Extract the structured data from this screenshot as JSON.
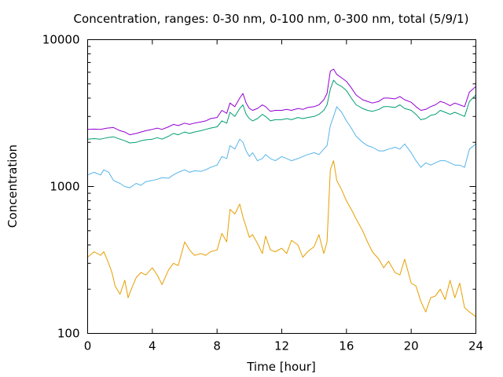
{
  "chart_data": {
    "type": "line",
    "title": "Concentration, ranges: 0-30 nm, 0-100 nm, 0-300 nm, total (5/9/1)",
    "xlabel": "Time [hour]",
    "ylabel": "Concentration",
    "xlim": [
      0,
      24
    ],
    "ylim": [
      100,
      10000
    ],
    "yscale": "log",
    "grid": false,
    "legend": "none",
    "x_ticks": [
      "0",
      "4",
      "8",
      "12",
      "16",
      "20",
      "24"
    ],
    "y_ticks": [
      "100",
      "1000",
      "10000"
    ],
    "x_tick_values": [
      0,
      4,
      8,
      12,
      16,
      20,
      24
    ],
    "y_tick_values": [
      100,
      1000,
      10000
    ],
    "series": [
      {
        "color": "#e69f00",
        "x": [
          0,
          0.4,
          0.8,
          1,
          1.3,
          1.5,
          1.7,
          2,
          2.3,
          2.5,
          2.7,
          3,
          3.3,
          3.6,
          4,
          4.3,
          4.6,
          5,
          5.3,
          5.6,
          6,
          6.3,
          6.6,
          7,
          7.3,
          7.6,
          8,
          8.3,
          8.6,
          8.8,
          9.1,
          9.4,
          9.6,
          9.8,
          10,
          10.2,
          10.5,
          10.8,
          11,
          11.3,
          11.6,
          12,
          12.3,
          12.6,
          13,
          13.3,
          13.6,
          14,
          14.3,
          14.6,
          14.8,
          15,
          15.2,
          15.4,
          15.7,
          16,
          16.3,
          16.6,
          17,
          17.3,
          17.6,
          18,
          18.3,
          18.6,
          19,
          19.3,
          19.6,
          20,
          20.3,
          20.6,
          20.9,
          21.2,
          21.5,
          21.8,
          22.1,
          22.4,
          22.7,
          23,
          23.3,
          23.6,
          24
        ],
        "values": [
          330,
          360,
          340,
          360,
          300,
          260,
          210,
          185,
          230,
          175,
          200,
          240,
          260,
          250,
          280,
          250,
          215,
          270,
          300,
          290,
          420,
          370,
          340,
          350,
          340,
          360,
          370,
          480,
          420,
          700,
          650,
          760,
          620,
          530,
          450,
          470,
          410,
          350,
          460,
          370,
          360,
          380,
          350,
          430,
          400,
          330,
          360,
          390,
          470,
          350,
          420,
          1300,
          1500,
          1100,
          950,
          800,
          700,
          600,
          500,
          420,
          360,
          320,
          280,
          310,
          260,
          250,
          320,
          220,
          210,
          165,
          140,
          175,
          180,
          200,
          170,
          230,
          175,
          220,
          150,
          140,
          130
        ]
      },
      {
        "color": "#56b4e9",
        "x": [
          0,
          0.4,
          0.8,
          1,
          1.3,
          1.6,
          2,
          2.3,
          2.6,
          3,
          3.3,
          3.6,
          4,
          4.3,
          4.6,
          5,
          5.3,
          5.6,
          6,
          6.3,
          6.6,
          7,
          7.3,
          7.6,
          8,
          8.3,
          8.6,
          8.8,
          9.1,
          9.4,
          9.6,
          9.8,
          10,
          10.2,
          10.5,
          10.8,
          11,
          11.3,
          11.6,
          12,
          12.3,
          12.6,
          13,
          13.3,
          13.6,
          14,
          14.3,
          14.6,
          14.8,
          15,
          15.2,
          15.4,
          15.7,
          16,
          16.3,
          16.6,
          17,
          17.3,
          17.6,
          18,
          18.3,
          18.6,
          19,
          19.3,
          19.6,
          20,
          20.3,
          20.6,
          20.9,
          21.2,
          21.5,
          21.8,
          22.1,
          22.4,
          22.7,
          23,
          23.3,
          23.6,
          24
        ],
        "values": [
          1200,
          1250,
          1200,
          1300,
          1250,
          1100,
          1050,
          1000,
          980,
          1050,
          1020,
          1080,
          1100,
          1120,
          1150,
          1140,
          1200,
          1250,
          1300,
          1250,
          1280,
          1270,
          1300,
          1350,
          1400,
          1600,
          1550,
          1900,
          1800,
          2100,
          2000,
          1750,
          1600,
          1700,
          1500,
          1550,
          1650,
          1550,
          1500,
          1600,
          1550,
          1500,
          1550,
          1600,
          1650,
          1700,
          1650,
          1800,
          1900,
          2600,
          3000,
          3500,
          3200,
          2800,
          2500,
          2200,
          2000,
          1900,
          1850,
          1750,
          1750,
          1800,
          1850,
          1800,
          1950,
          1700,
          1500,
          1350,
          1450,
          1400,
          1450,
          1500,
          1500,
          1450,
          1400,
          1400,
          1350,
          1800,
          1950
        ]
      },
      {
        "color": "#009e73",
        "x": [
          0,
          0.4,
          0.8,
          1.2,
          1.6,
          2,
          2.3,
          2.6,
          3,
          3.3,
          3.6,
          4,
          4.3,
          4.6,
          5,
          5.3,
          5.6,
          6,
          6.3,
          6.6,
          7,
          7.3,
          7.6,
          8,
          8.3,
          8.6,
          8.8,
          9.1,
          9.4,
          9.6,
          9.8,
          10,
          10.2,
          10.5,
          10.8,
          11,
          11.3,
          11.6,
          12,
          12.3,
          12.6,
          13,
          13.3,
          13.6,
          14,
          14.3,
          14.6,
          14.8,
          15,
          15.2,
          15.4,
          15.7,
          16,
          16.3,
          16.6,
          17,
          17.3,
          17.6,
          18,
          18.3,
          18.6,
          19,
          19.3,
          19.6,
          20,
          20.3,
          20.6,
          20.9,
          21.2,
          21.5,
          21.8,
          22.1,
          22.4,
          22.7,
          23,
          23.3,
          23.6,
          24
        ],
        "values": [
          2100,
          2120,
          2100,
          2150,
          2180,
          2100,
          2050,
          1980,
          2000,
          2050,
          2080,
          2100,
          2150,
          2100,
          2200,
          2300,
          2250,
          2350,
          2300,
          2350,
          2400,
          2450,
          2500,
          2550,
          2800,
          2700,
          3200,
          3000,
          3400,
          3600,
          3100,
          2900,
          2800,
          2900,
          3100,
          3000,
          2800,
          2850,
          2850,
          2900,
          2850,
          2950,
          2900,
          2950,
          3000,
          3100,
          3300,
          3600,
          4600,
          5300,
          5000,
          4800,
          4500,
          4000,
          3600,
          3400,
          3300,
          3250,
          3350,
          3500,
          3500,
          3450,
          3600,
          3400,
          3300,
          3100,
          2850,
          2900,
          3050,
          3100,
          3300,
          3200,
          3100,
          3200,
          3100,
          3000,
          3800,
          4200
        ]
      },
      {
        "color": "#9400d3",
        "x": [
          0,
          0.4,
          0.8,
          1.2,
          1.6,
          2,
          2.3,
          2.6,
          3,
          3.3,
          3.6,
          4,
          4.3,
          4.6,
          5,
          5.3,
          5.6,
          6,
          6.3,
          6.6,
          7,
          7.3,
          7.6,
          8,
          8.3,
          8.6,
          8.8,
          9.1,
          9.4,
          9.6,
          9.8,
          10,
          10.2,
          10.5,
          10.8,
          11,
          11.3,
          11.6,
          12,
          12.3,
          12.6,
          13,
          13.3,
          13.6,
          14,
          14.3,
          14.6,
          14.8,
          15,
          15.2,
          15.4,
          15.7,
          16,
          16.3,
          16.6,
          17,
          17.3,
          17.6,
          18,
          18.3,
          18.6,
          19,
          19.3,
          19.6,
          20,
          20.3,
          20.6,
          20.9,
          21.2,
          21.5,
          21.8,
          22.1,
          22.4,
          22.7,
          23,
          23.3,
          23.6,
          24
        ],
        "values": [
          2450,
          2460,
          2450,
          2500,
          2520,
          2400,
          2350,
          2250,
          2300,
          2350,
          2400,
          2450,
          2500,
          2450,
          2550,
          2650,
          2600,
          2700,
          2650,
          2700,
          2750,
          2800,
          2900,
          2950,
          3300,
          3150,
          3700,
          3500,
          4000,
          4300,
          3700,
          3400,
          3300,
          3400,
          3600,
          3500,
          3250,
          3300,
          3300,
          3350,
          3300,
          3400,
          3350,
          3450,
          3500,
          3600,
          3900,
          4300,
          6100,
          6300,
          5800,
          5500,
          5200,
          4700,
          4200,
          3900,
          3800,
          3700,
          3800,
          4000,
          4000,
          3950,
          4100,
          3900,
          3750,
          3500,
          3300,
          3350,
          3500,
          3600,
          3800,
          3700,
          3550,
          3700,
          3600,
          3500,
          4400,
          4800
        ]
      }
    ]
  }
}
